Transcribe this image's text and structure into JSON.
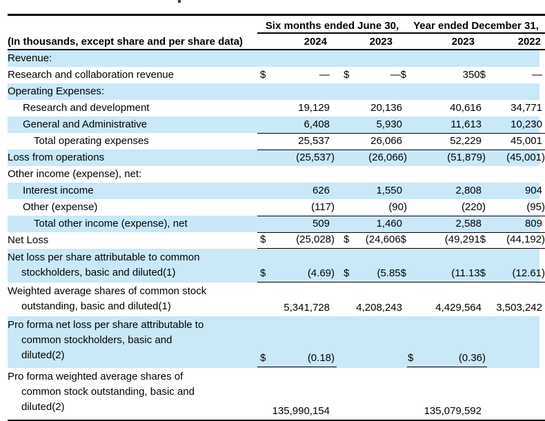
{
  "table": {
    "col_groups": [
      {
        "label": "Six months ended June 30,"
      },
      {
        "label": "Year ended December 31,"
      }
    ],
    "unit_note": "(In thousands, except share and per share data)",
    "years": [
      "2024",
      "2023",
      "2023",
      "2022"
    ],
    "rows": [
      {
        "label": "Revenue:",
        "bg": "blue",
        "indent": 0,
        "cells": [
          {},
          {},
          {},
          {}
        ]
      },
      {
        "label": "Research and collaboration revenue",
        "bg": "white",
        "indent": 0,
        "cells": [
          {
            "sym": "$",
            "val": "—"
          },
          {
            "sym": "$",
            "val": "—$"
          },
          {
            "val": "350$"
          },
          {
            "val": "—"
          }
        ]
      },
      {
        "label": "Operating Expenses:",
        "bg": "blue",
        "indent": 0,
        "cells": [
          {},
          {},
          {},
          {}
        ]
      },
      {
        "label": "Research and development",
        "bg": "white",
        "indent": 1,
        "cells": [
          {
            "val": "19,129"
          },
          {
            "val": "20,136"
          },
          {
            "val": "40,616"
          },
          {
            "val": "34,771"
          }
        ]
      },
      {
        "label": "General and Administrative",
        "bg": "blue",
        "indent": 1,
        "cells": [
          {
            "val": "6,408"
          },
          {
            "val": "5,930"
          },
          {
            "val": "11,613"
          },
          {
            "val": "10,230"
          }
        ]
      },
      {
        "label": "Total operating expenses",
        "bg": "white",
        "indent": 2,
        "rule_top": true,
        "cells": [
          {
            "val": "25,537"
          },
          {
            "val": "26,066"
          },
          {
            "val": "52,229"
          },
          {
            "val": "45,001"
          }
        ]
      },
      {
        "label": "Loss from operations",
        "bg": "blue",
        "indent": 0,
        "rule_top": true,
        "cells": [
          {
            "val": "(25,537)"
          },
          {
            "val": "(26,066)"
          },
          {
            "val": "(51,879)"
          },
          {
            "val": "(45,001)"
          }
        ]
      },
      {
        "label": "Other income (expense), net:",
        "bg": "white",
        "indent": 0,
        "cells": [
          {},
          {},
          {},
          {}
        ]
      },
      {
        "label": "Interest income",
        "bg": "blue",
        "indent": 1,
        "cells": [
          {
            "val": "626"
          },
          {
            "val": "1,550"
          },
          {
            "val": "2,808"
          },
          {
            "val": "904"
          }
        ]
      },
      {
        "label": "Other (expense)",
        "bg": "white",
        "indent": 1,
        "cells": [
          {
            "val": "(117)"
          },
          {
            "val": "(90)"
          },
          {
            "val": "(220)"
          },
          {
            "val": "(95)"
          }
        ]
      },
      {
        "label": "Total other income (expense), net",
        "bg": "blue",
        "indent": 2,
        "rule_top": true,
        "cells": [
          {
            "val": "509"
          },
          {
            "val": "1,460"
          },
          {
            "val": "2,588"
          },
          {
            "val": "809"
          }
        ]
      },
      {
        "label": "Net Loss",
        "bg": "white",
        "indent": 0,
        "rule_top": true,
        "rule_bottom": true,
        "cells": [
          {
            "sym": "$",
            "val": "(25,028)"
          },
          {
            "sym": "$",
            "val": "(24,606$"
          },
          {
            "val": "(49,291$"
          },
          {
            "val": "(44,192)"
          }
        ]
      },
      {
        "lines": [
          "Net loss per share attributable to common",
          "stockholders, basic and diluted(1)"
        ],
        "bg": "blue",
        "rule_bottom": true,
        "cells": [
          {
            "sym": "$",
            "val": "(4.69)"
          },
          {
            "sym": "$",
            "val": "(5.85$"
          },
          {
            "val": "(11.13$"
          },
          {
            "val": "(12.61)"
          }
        ]
      },
      {
        "lines": [
          "Weighted average shares of common stock",
          "outstanding, basic and diluted(1)"
        ],
        "bg": "white",
        "cells": [
          {
            "val": "5,341,728"
          },
          {
            "val": "4,208,243"
          },
          {
            "val": "4,429,564"
          },
          {
            "val": "3,503,242"
          }
        ]
      },
      {
        "lines": [
          "Pro forma net loss per share attributable to",
          "common stockholders, basic and",
          "diluted(2)"
        ],
        "bg": "blue",
        "rule_bottom_cols": [
          0,
          2
        ],
        "cells": [
          {
            "sym": "$",
            "val": "(0.18)"
          },
          {},
          {
            "sym": "$",
            "val": "(0.36)"
          },
          {}
        ]
      },
      {
        "lines": [
          "Pro forma weighted average shares of",
          "common stock outstanding, basic and",
          "diluted(2)"
        ],
        "bg": "white",
        "cells": [
          {
            "val": "135,990,154"
          },
          {},
          {
            "val": "135,079,592"
          },
          {}
        ]
      }
    ]
  },
  "colors": {
    "row_highlight": "#c9e8f8",
    "rule": "#000000"
  }
}
